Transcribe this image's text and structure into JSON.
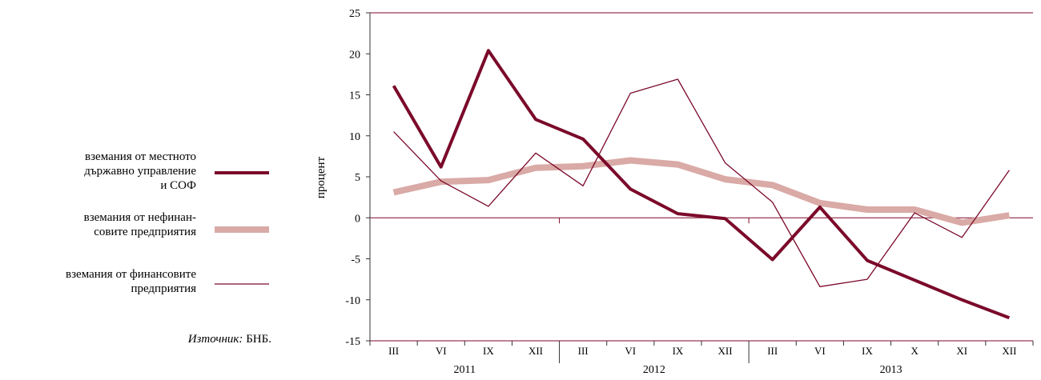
{
  "chart_data": {
    "type": "line",
    "title": "",
    "xlabel": "",
    "ylabel": "процент",
    "ylim": [
      -15,
      25
    ],
    "yticks": [
      25,
      20,
      15,
      10,
      5,
      0,
      -5,
      -10,
      -15
    ],
    "grid": false,
    "legend_placement": "left",
    "categories": [
      "III",
      "VI",
      "IX",
      "XII",
      "III",
      "VI",
      "IX",
      "XII",
      "III",
      "VI",
      "IX",
      "X",
      "XI",
      "XII"
    ],
    "year_labels": [
      {
        "label": "2011",
        "from": 0,
        "to": 3
      },
      {
        "label": "2012",
        "from": 4,
        "to": 7
      },
      {
        "label": "2013",
        "from": 8,
        "to": 13
      }
    ],
    "series": [
      {
        "name_lines": [
          "вземания от местното",
          "държавно управление",
          "и СОФ"
        ],
        "color": "#7b0a2a",
        "style": "thick",
        "values": [
          16.1,
          6.2,
          20.4,
          12.0,
          9.6,
          3.5,
          0.5,
          -0.1,
          -5.1,
          1.3,
          -5.2,
          -7.6,
          -10.0,
          -12.2
        ]
      },
      {
        "name_lines": [
          "вземания от нефинан-",
          "совите предприятия"
        ],
        "color": "#d9aaa6",
        "style": "wide",
        "values": [
          3.1,
          4.4,
          4.6,
          6.1,
          6.3,
          7.0,
          6.5,
          4.7,
          4.0,
          1.8,
          1.0,
          1.0,
          -0.6,
          0.3
        ]
      },
      {
        "name_lines": [
          "вземания от финансовите",
          "предприятия"
        ],
        "color": "#7b0a2a",
        "style": "thin",
        "values": [
          10.5,
          4.5,
          1.4,
          7.9,
          3.9,
          15.2,
          16.9,
          6.7,
          1.9,
          -8.4,
          -7.5,
          0.6,
          -2.4,
          5.8
        ]
      }
    ]
  },
  "source": {
    "label": "Източник:",
    "text": " БНБ."
  }
}
